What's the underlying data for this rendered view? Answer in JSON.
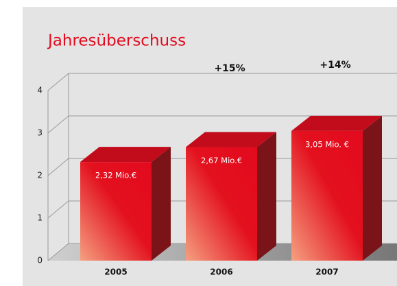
{
  "chart_data": {
    "type": "bar3d",
    "title": "Jahresüberschuss",
    "categories": [
      "2005",
      "2006",
      "2007"
    ],
    "values": [
      2.32,
      2.67,
      3.05
    ],
    "value_labels": [
      "2,32 Mio.€",
      "2,67 Mio.€",
      "3,05 Mio. €"
    ],
    "annotations": [
      "+15%",
      "+14%"
    ],
    "color": "#e30a1e",
    "ylim": [
      0,
      4
    ],
    "yticks": [
      0,
      1,
      2,
      3,
      4
    ],
    "grid": true
  }
}
